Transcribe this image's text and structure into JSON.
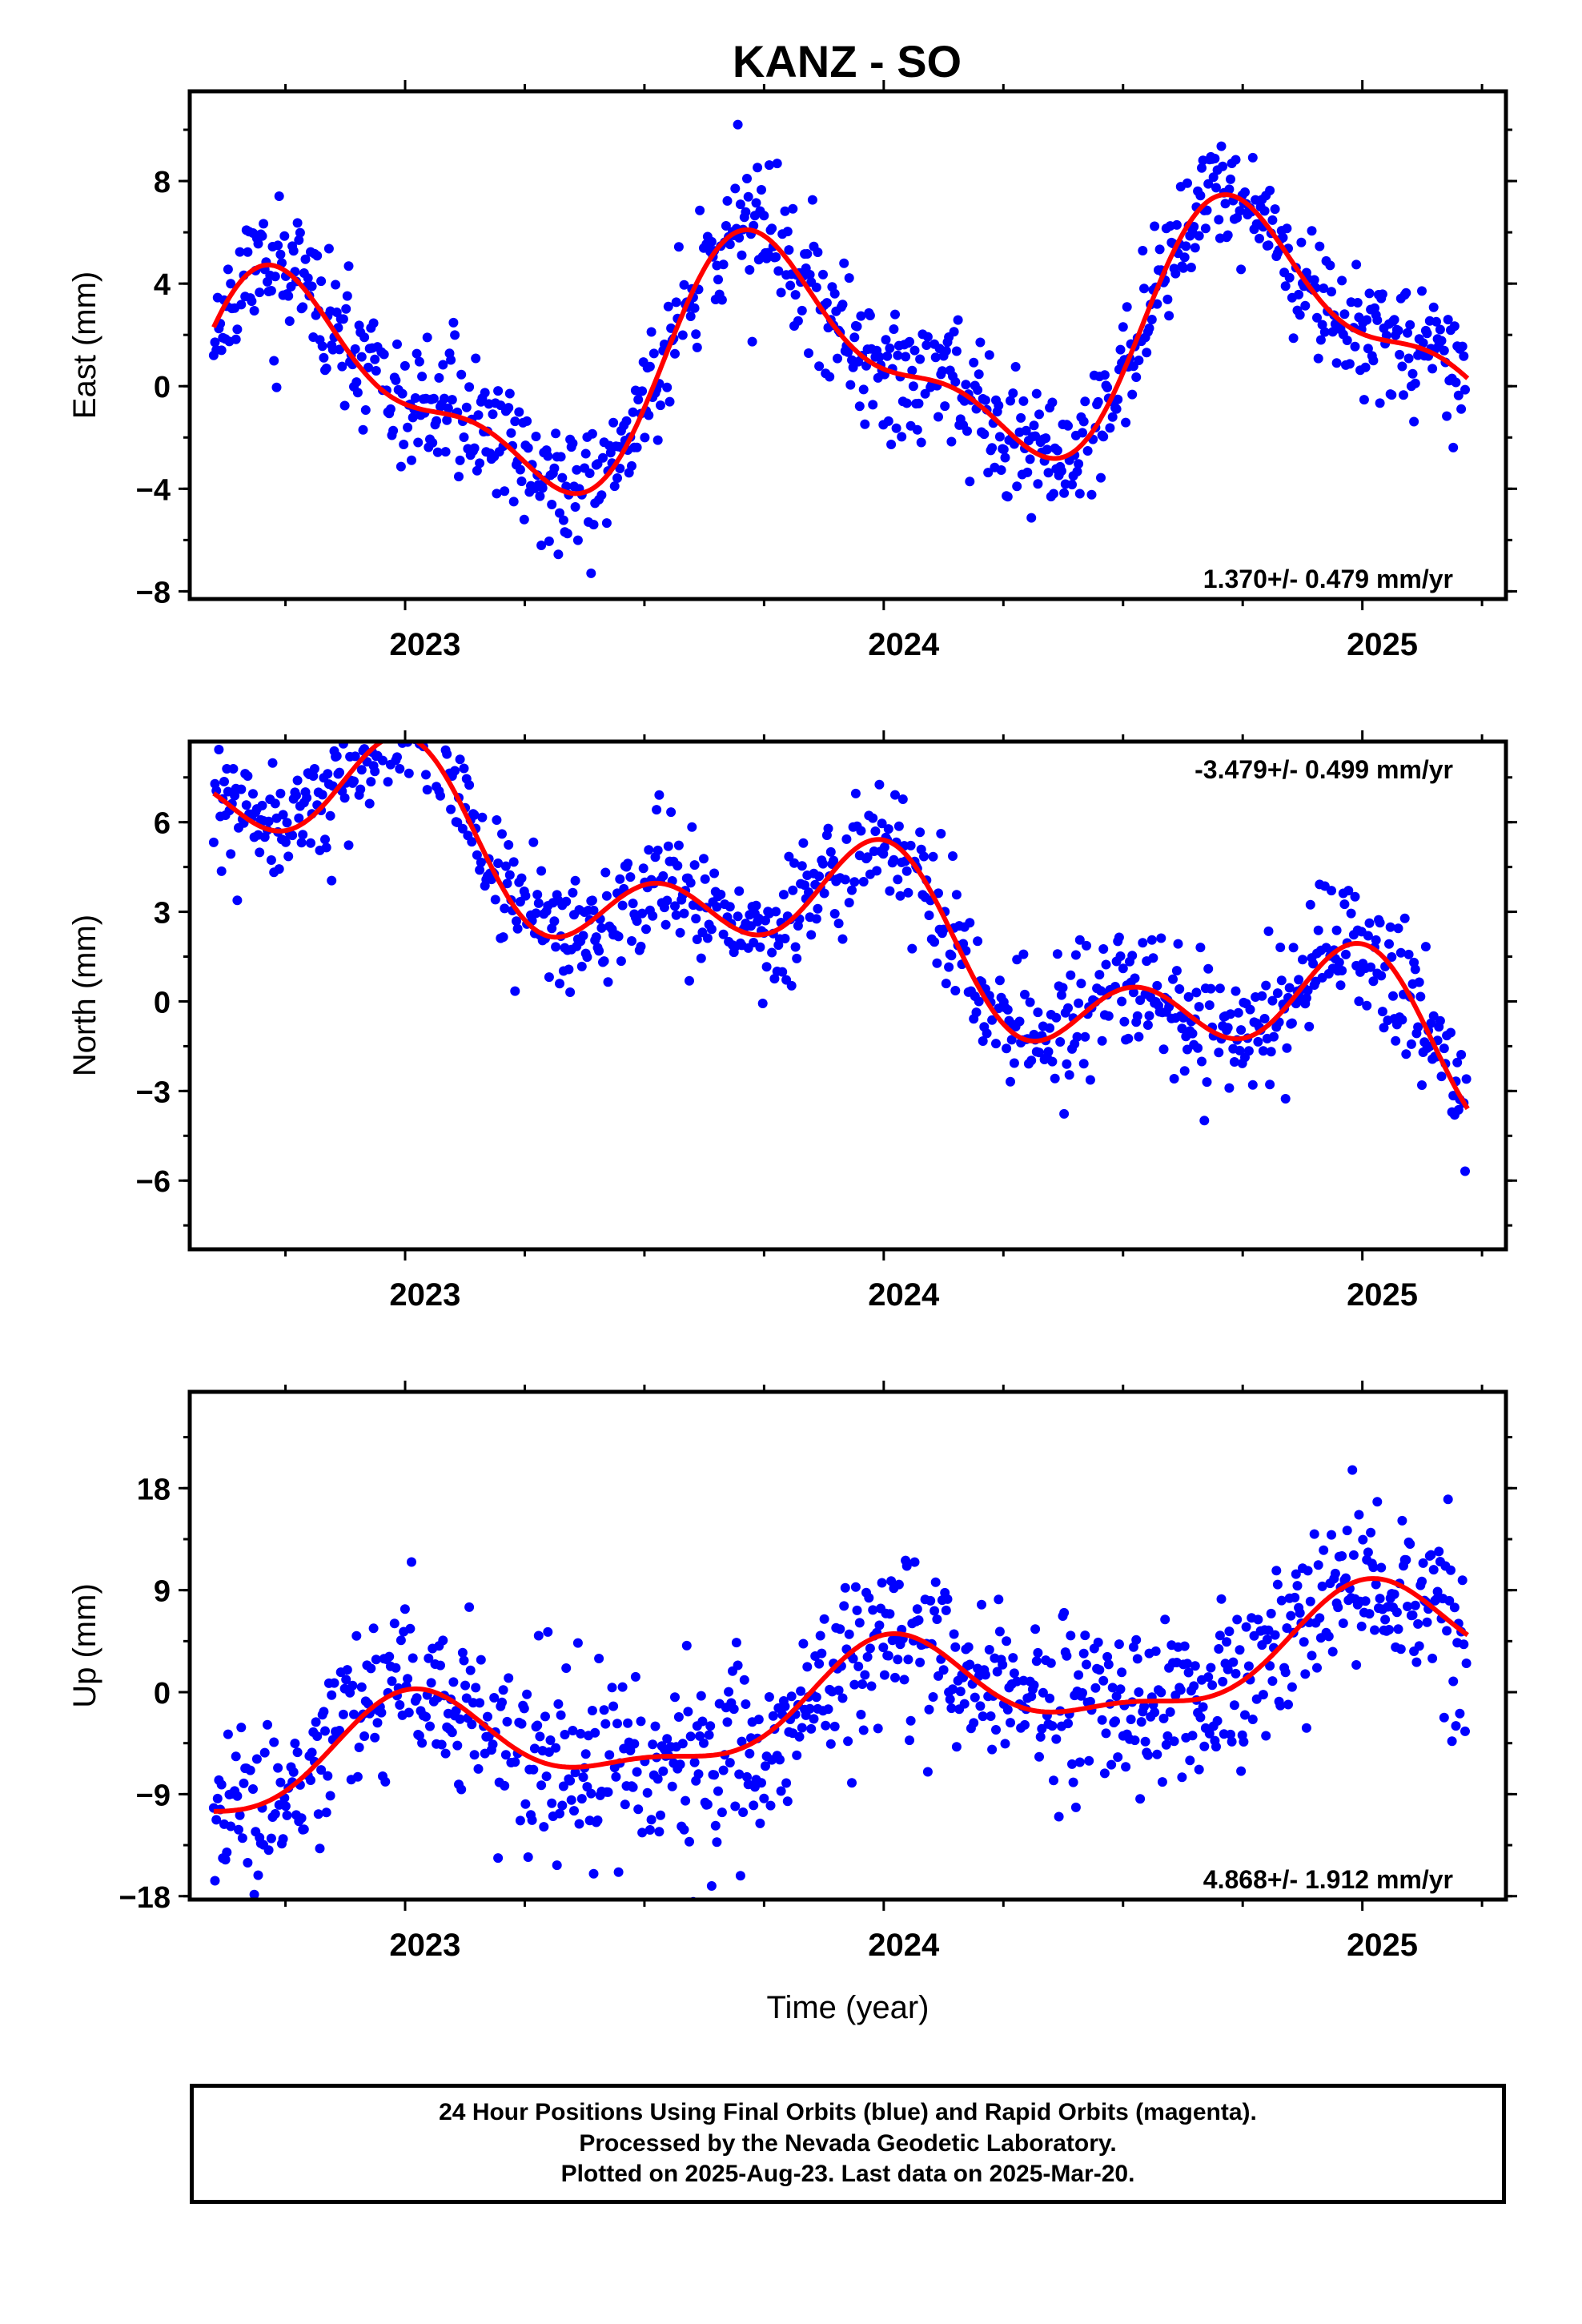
{
  "title": "KANZ - SO",
  "colors": {
    "data": "#0000ff",
    "fit": "#ff0000",
    "frame": "#000000"
  },
  "chart_data": [
    {
      "type": "scatter",
      "panel": "east",
      "ylabel": "East (mm)",
      "xlim": [
        2022.55,
        2025.3
      ],
      "ylim": [
        -8.3,
        11.5
      ],
      "yticks": [
        -8,
        -4,
        0,
        4,
        8
      ],
      "yticklabels": [
        "−8",
        "−4",
        "0",
        "4",
        "8"
      ],
      "xticks": [
        2023,
        2024,
        2025
      ],
      "xticklabels": [
        "2023",
        "2024",
        "2025"
      ],
      "rate_label": "1.370+/- 0.479 mm/yr",
      "model": {
        "type": "line",
        "x_start": 2022.6,
        "x_end": 2025.22,
        "offset": 1.06,
        "rate": 1.37,
        "annual_sin": 4.07,
        "annual_cos": -0.41,
        "semiannual_sin": 1.31,
        "semiannual_cos": -0.94
      },
      "scatter": {
        "noise_sd": 1.25,
        "seed": 11
      }
    },
    {
      "type": "scatter",
      "panel": "north",
      "ylabel": "North (mm)",
      "xlim": [
        2022.55,
        2025.3
      ],
      "ylim": [
        -8.3,
        8.7
      ],
      "yticks": [
        -6,
        -3,
        0,
        3,
        6
      ],
      "yticklabels": [
        "−6",
        "−3",
        "0",
        "3",
        "6"
      ],
      "xticks": [
        2023,
        2024,
        2025
      ],
      "xticklabels": [
        "2023",
        "2024",
        "2025"
      ],
      "rate_label": "-3.479+/- 0.499 mm/yr",
      "model": {
        "type": "line",
        "x_start": 2022.6,
        "x_end": 2025.22,
        "offset": 2.61,
        "rate": -3.479,
        "annual_sin": 0.63,
        "annual_cos": -1.62,
        "semiannual_sin": 0.32,
        "semiannual_cos": 1.52
      },
      "scatter": {
        "noise_sd": 1.05,
        "seed": 23
      }
    },
    {
      "type": "scatter",
      "panel": "up",
      "ylabel": "Up (mm)",
      "xlabel": "Time (year)",
      "xlim": [
        2022.55,
        2025.3
      ],
      "ylim": [
        -18.3,
        26.5
      ],
      "yticks": [
        -18,
        -9,
        0,
        9,
        18
      ],
      "yticklabels": [
        "−18",
        "−9",
        "0",
        "9",
        "18"
      ],
      "xticks": [
        2023,
        2024,
        2025
      ],
      "xticklabels": [
        "2023",
        "2024",
        "2025"
      ],
      "rate_label": "4.868+/- 1.912 mm/yr",
      "model": {
        "type": "line",
        "x_start": 2022.6,
        "x_end": 2025.22,
        "offset": -1.18,
        "rate": 4.868,
        "annual_sin": -0.4,
        "annual_cos": -4.2,
        "semiannual_sin": 0.15,
        "semiannual_cos": 1.55
      },
      "scatter": {
        "noise_sd": 4.0,
        "seed": 37
      }
    }
  ],
  "footer": {
    "line1": "24 Hour Positions Using Final Orbits (blue) and Rapid Orbits (magenta).",
    "line2": "Processed by the Nevada Geodetic Laboratory.",
    "line3": "Plotted on 2025-Aug-23. Last data on 2025-Mar-20."
  }
}
